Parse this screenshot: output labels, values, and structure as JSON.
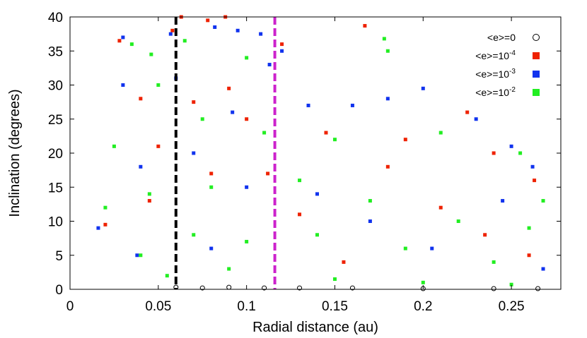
{
  "chart_data": {
    "type": "scatter",
    "xlabel": "Radial distance (au)",
    "ylabel": "Inclination (degrees)",
    "xlim": [
      0,
      0.278
    ],
    "ylim": [
      0,
      40
    ],
    "x_ticks": [
      0,
      0.05,
      0.1,
      0.15,
      0.2,
      0.25
    ],
    "x_tick_labels": [
      "0",
      "0.05",
      "0.1",
      "0.15",
      "0.2",
      "0.25"
    ],
    "y_ticks": [
      0,
      5,
      10,
      15,
      20,
      25,
      30,
      35,
      40
    ],
    "y_tick_labels": [
      "0",
      "5",
      "10",
      "15",
      "20",
      "25",
      "30",
      "35",
      "40"
    ],
    "grid": false,
    "legend_position": "top-right",
    "vertical_lines": [
      {
        "x": 0.06,
        "color": "#000000",
        "style": "dashed"
      },
      {
        "x": 0.116,
        "color": "#cc22cc",
        "style": "dashed"
      }
    ],
    "series": [
      {
        "legend": "<e>=0",
        "label_base": "<e>=0",
        "label_exp": "",
        "marker": "open-circle",
        "color": "#000000",
        "points": [
          [
            0.06,
            0.3
          ],
          [
            0.075,
            0.2
          ],
          [
            0.09,
            0.3
          ],
          [
            0.11,
            0.2
          ],
          [
            0.13,
            0.2
          ],
          [
            0.16,
            0.2
          ],
          [
            0.2,
            0.1
          ],
          [
            0.24,
            0.1
          ],
          [
            0.265,
            0.1
          ]
        ]
      },
      {
        "legend": "<e>=10^-4",
        "label_base": "<e>=10",
        "label_exp": "-4",
        "marker": "square",
        "color": "#ee2200",
        "points": [
          [
            0.028,
            36.5
          ],
          [
            0.058,
            38
          ],
          [
            0.063,
            40
          ],
          [
            0.078,
            39.5
          ],
          [
            0.088,
            40
          ],
          [
            0.12,
            36
          ],
          [
            0.167,
            38.7
          ],
          [
            0.04,
            28
          ],
          [
            0.07,
            27.5
          ],
          [
            0.09,
            29.5
          ],
          [
            0.1,
            25
          ],
          [
            0.145,
            23
          ],
          [
            0.19,
            22
          ],
          [
            0.225,
            26
          ],
          [
            0.263,
            16
          ],
          [
            0.02,
            9.5
          ],
          [
            0.045,
            13
          ],
          [
            0.08,
            17
          ],
          [
            0.13,
            11
          ],
          [
            0.18,
            18
          ],
          [
            0.21,
            12
          ],
          [
            0.235,
            8
          ],
          [
            0.26,
            5
          ],
          [
            0.155,
            4
          ],
          [
            0.05,
            21
          ],
          [
            0.112,
            17
          ],
          [
            0.24,
            20
          ]
        ]
      },
      {
        "legend": "<e>=10^-3",
        "label_base": "<e>=10",
        "label_exp": "-3",
        "marker": "square",
        "color": "#1133ee",
        "points": [
          [
            0.03,
            37
          ],
          [
            0.057,
            37.5
          ],
          [
            0.082,
            38.5
          ],
          [
            0.095,
            38
          ],
          [
            0.108,
            37.5
          ],
          [
            0.12,
            35
          ],
          [
            0.03,
            30
          ],
          [
            0.06,
            31
          ],
          [
            0.092,
            26
          ],
          [
            0.113,
            33
          ],
          [
            0.135,
            27
          ],
          [
            0.16,
            27
          ],
          [
            0.18,
            28
          ],
          [
            0.2,
            29.5
          ],
          [
            0.23,
            25
          ],
          [
            0.25,
            21
          ],
          [
            0.262,
            18
          ],
          [
            0.016,
            9
          ],
          [
            0.04,
            18
          ],
          [
            0.07,
            20
          ],
          [
            0.1,
            15
          ],
          [
            0.14,
            14
          ],
          [
            0.17,
            10
          ],
          [
            0.205,
            6
          ],
          [
            0.245,
            13
          ],
          [
            0.268,
            3
          ],
          [
            0.038,
            5
          ],
          [
            0.08,
            6
          ]
        ]
      },
      {
        "legend": "<e>=10^-2",
        "label_base": "<e>=10",
        "label_exp": "-2",
        "marker": "square",
        "color": "#22ee22",
        "points": [
          [
            0.035,
            36
          ],
          [
            0.046,
            34.5
          ],
          [
            0.065,
            36.5
          ],
          [
            0.1,
            34
          ],
          [
            0.178,
            36.8
          ],
          [
            0.18,
            35
          ],
          [
            0.025,
            21
          ],
          [
            0.05,
            30
          ],
          [
            0.075,
            25
          ],
          [
            0.11,
            23
          ],
          [
            0.15,
            22
          ],
          [
            0.21,
            23
          ],
          [
            0.255,
            20
          ],
          [
            0.268,
            13
          ],
          [
            0.02,
            12
          ],
          [
            0.045,
            14
          ],
          [
            0.08,
            15
          ],
          [
            0.13,
            16
          ],
          [
            0.17,
            13
          ],
          [
            0.22,
            10
          ],
          [
            0.26,
            9
          ],
          [
            0.04,
            5
          ],
          [
            0.07,
            8
          ],
          [
            0.1,
            7
          ],
          [
            0.14,
            8
          ],
          [
            0.19,
            6
          ],
          [
            0.24,
            4
          ],
          [
            0.055,
            2
          ],
          [
            0.09,
            3
          ],
          [
            0.15,
            1.5
          ],
          [
            0.2,
            1
          ],
          [
            0.25,
            0.7
          ]
        ]
      }
    ]
  }
}
